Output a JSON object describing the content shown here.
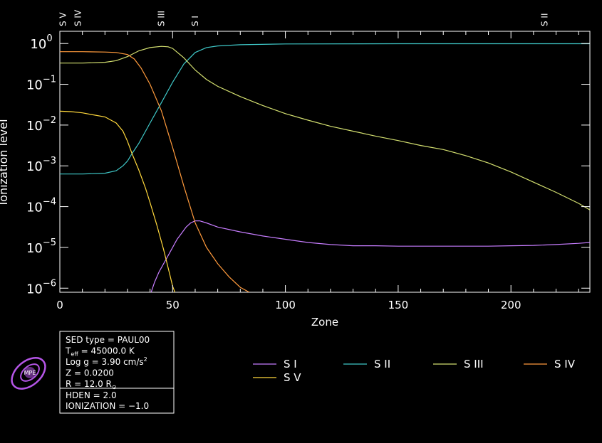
{
  "chart_data": {
    "type": "line",
    "title": "",
    "xlabel": "Zone",
    "ylabel": "Ionization level",
    "xlim": [
      0,
      235
    ],
    "ylim_log10": [
      -6.1,
      0.3
    ],
    "y_scale": "log",
    "x_ticks": [
      "0",
      "50",
      "100",
      "150",
      "200"
    ],
    "x_tick_values": [
      0,
      50,
      100,
      150,
      200
    ],
    "y_ticks": [
      {
        "base": "10",
        "exp": "0",
        "value": 0
      },
      {
        "base": "10",
        "exp": "−1",
        "value": -1
      },
      {
        "base": "10",
        "exp": "−2",
        "value": -2
      },
      {
        "base": "10",
        "exp": "−3",
        "value": -3
      },
      {
        "base": "10",
        "exp": "−4",
        "value": -4
      },
      {
        "base": "10",
        "exp": "−5",
        "value": -5
      },
      {
        "base": "10",
        "exp": "−6",
        "value": -6
      }
    ],
    "top_markers": [
      {
        "label": "S V",
        "zone": 1.5
      },
      {
        "label": "S IV",
        "zone": 8
      },
      {
        "label": "S III",
        "zone": 45
      },
      {
        "label": "S I",
        "zone": 60
      },
      {
        "label": "S II",
        "zone": 215
      }
    ],
    "series": [
      {
        "name": "S I",
        "color": "#c77dff",
        "x": [
          40.5,
          42,
          44,
          46,
          48,
          50,
          52,
          54,
          56,
          58,
          60,
          62,
          65,
          70,
          80,
          90,
          100,
          110,
          120,
          130,
          140,
          150,
          160,
          170,
          180,
          190,
          200,
          210,
          220,
          230,
          235
        ],
        "y_log10": [
          -6.1,
          -5.85,
          -5.6,
          -5.4,
          -5.2,
          -5.0,
          -4.8,
          -4.65,
          -4.5,
          -4.4,
          -4.35,
          -4.35,
          -4.4,
          -4.5,
          -4.62,
          -4.72,
          -4.8,
          -4.88,
          -4.93,
          -4.96,
          -4.96,
          -4.97,
          -4.97,
          -4.97,
          -4.97,
          -4.97,
          -4.96,
          -4.95,
          -4.93,
          -4.9,
          -4.88
        ]
      },
      {
        "name": "S II",
        "color": "#3fc8c8",
        "x": [
          0,
          10,
          20,
          25,
          28,
          30,
          32,
          35,
          38,
          40,
          45,
          50,
          55,
          60,
          65,
          70,
          80,
          100,
          150,
          200,
          235
        ],
        "y_log10": [
          -3.2,
          -3.2,
          -3.18,
          -3.12,
          -3.0,
          -2.88,
          -2.7,
          -2.45,
          -2.15,
          -1.95,
          -1.45,
          -0.95,
          -0.5,
          -0.22,
          -0.1,
          -0.06,
          -0.03,
          -0.01,
          -0.005,
          -0.005,
          -0.005
        ]
      },
      {
        "name": "S III",
        "color": "#d4e070",
        "x": [
          0,
          10,
          20,
          25,
          30,
          35,
          40,
          45,
          48,
          50,
          55,
          60,
          65,
          70,
          80,
          90,
          100,
          110,
          120,
          130,
          140,
          150,
          160,
          170,
          180,
          190,
          200,
          210,
          220,
          230,
          235
        ],
        "y_log10": [
          -0.48,
          -0.48,
          -0.46,
          -0.42,
          -0.32,
          -0.18,
          -0.1,
          -0.07,
          -0.08,
          -0.12,
          -0.35,
          -0.65,
          -0.88,
          -1.05,
          -1.3,
          -1.52,
          -1.72,
          -1.88,
          -2.03,
          -2.15,
          -2.27,
          -2.38,
          -2.5,
          -2.6,
          -2.75,
          -2.93,
          -3.15,
          -3.4,
          -3.65,
          -3.92,
          -4.08
        ]
      },
      {
        "name": "S IV",
        "color": "#ff9a3c",
        "x": [
          0,
          10,
          20,
          25,
          30,
          33,
          36,
          40,
          45,
          50,
          55,
          60,
          65,
          70,
          75,
          80,
          84
        ],
        "y_log10": [
          -0.2,
          -0.2,
          -0.21,
          -0.22,
          -0.27,
          -0.38,
          -0.6,
          -1.0,
          -1.65,
          -2.55,
          -3.5,
          -4.4,
          -5.0,
          -5.4,
          -5.72,
          -5.98,
          -6.1
        ]
      },
      {
        "name": "S V",
        "color": "#ffd83c",
        "x": [
          0,
          5,
          10,
          15,
          20,
          25,
          28,
          30,
          32,
          35,
          38,
          40,
          43,
          46,
          48,
          50,
          51
        ],
        "y_log10": [
          -1.66,
          -1.67,
          -1.7,
          -1.75,
          -1.8,
          -1.95,
          -2.15,
          -2.4,
          -2.7,
          -3.1,
          -3.55,
          -3.9,
          -4.45,
          -5.05,
          -5.5,
          -5.95,
          -6.1
        ]
      }
    ],
    "legend_placement": "bottom-center"
  },
  "info_box": {
    "lines": [
      {
        "text": "SED type = PAUL00"
      },
      {
        "prefix": "T",
        "sub": "eff",
        "text": " = 45000.0 K"
      },
      {
        "text": "Log g = 3.90 cm/s",
        "sup": "2"
      },
      {
        "text": "Z = 0.0200"
      },
      {
        "text": "R = 12.0 R",
        "sub": "⊙"
      }
    ],
    "lines2": [
      {
        "text": "HDEN = 2.0"
      },
      {
        "text": "IONIZATION = −1.0"
      }
    ]
  },
  "logo": {
    "text": "MPE",
    "color": "#b455e6"
  }
}
